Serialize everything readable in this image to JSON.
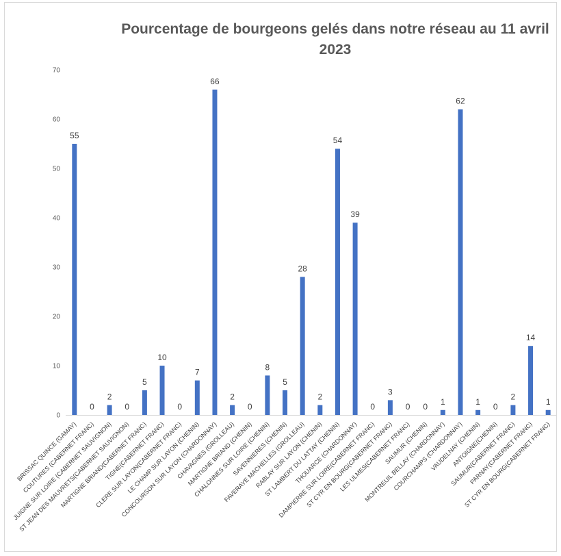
{
  "chart_data": {
    "type": "bar",
    "title": "Pourcentage de bourgeons gelés dans notre réseau au 11 avril 2023",
    "xlabel": "",
    "ylabel": "",
    "ylim": [
      0,
      70
    ],
    "yticks": [
      0,
      10,
      20,
      30,
      40,
      50,
      60,
      70
    ],
    "grid": false,
    "bar_color": "#4472C4",
    "categories": [
      "BRISSAC QUINCE (GAMAY)",
      "COUTURES (CABERNET FRANC)",
      "JUIGNE SUR LOIRE (CABERNET SAUVIGNON)",
      "ST JEAN DES MAUVRETS(CABERNET SAUVIGNON)",
      "MARTIGNE BRIAND(CABERNET FRANC)",
      "TIGNE(CABERNET FRANC)",
      "CLERE SUR LAYON(CABERNET FRANC)",
      "LE CHAMP SUR LAYON (CHENIN)",
      "CONCOURSON SUR LAYON (CHARDONNAY)",
      "CHAVAGNES (GROLLEAU)",
      "MARTIGNE BRIAND (CHENIN)",
      "CHALONNES SUR LOIRE (CHENIN)",
      "SAVENNIERES (CHENIN)",
      "FAVERAYE MACHELLES (GROLLEAU)",
      "RABLAY SUR LAYON (CHENIN)",
      "ST LAMBERT DU LATTAY (CHENIN)",
      "THOUARCE (CHARDONNAY)",
      "DAMPIERRE SUR LOIRE(CABERNET FRANC)",
      "ST CYR EN BOURG(CABERNET FRANC)",
      "LES ULMES(CABERNET FRANC)",
      "SAUMUR (CHENIN)",
      "MONTREUIL BELLAY (CHARDONNAY)",
      "COURCHAMPS (CHARDONNAY)",
      "VAUDELNAY (CHENIN)",
      "ANTOIGNE(CHENIN)",
      "SAUMUR(CABERNET FRANC)",
      "PARNAY(CABERNET FRANC)",
      "ST CYR EN BOURG(CABERNET FRANC)"
    ],
    "values": [
      55,
      0,
      2,
      0,
      5,
      10,
      0,
      7,
      66,
      2,
      0,
      8,
      5,
      28,
      2,
      54,
      39,
      0,
      3,
      0,
      0,
      1,
      62,
      1,
      0,
      2,
      14,
      1
    ]
  }
}
